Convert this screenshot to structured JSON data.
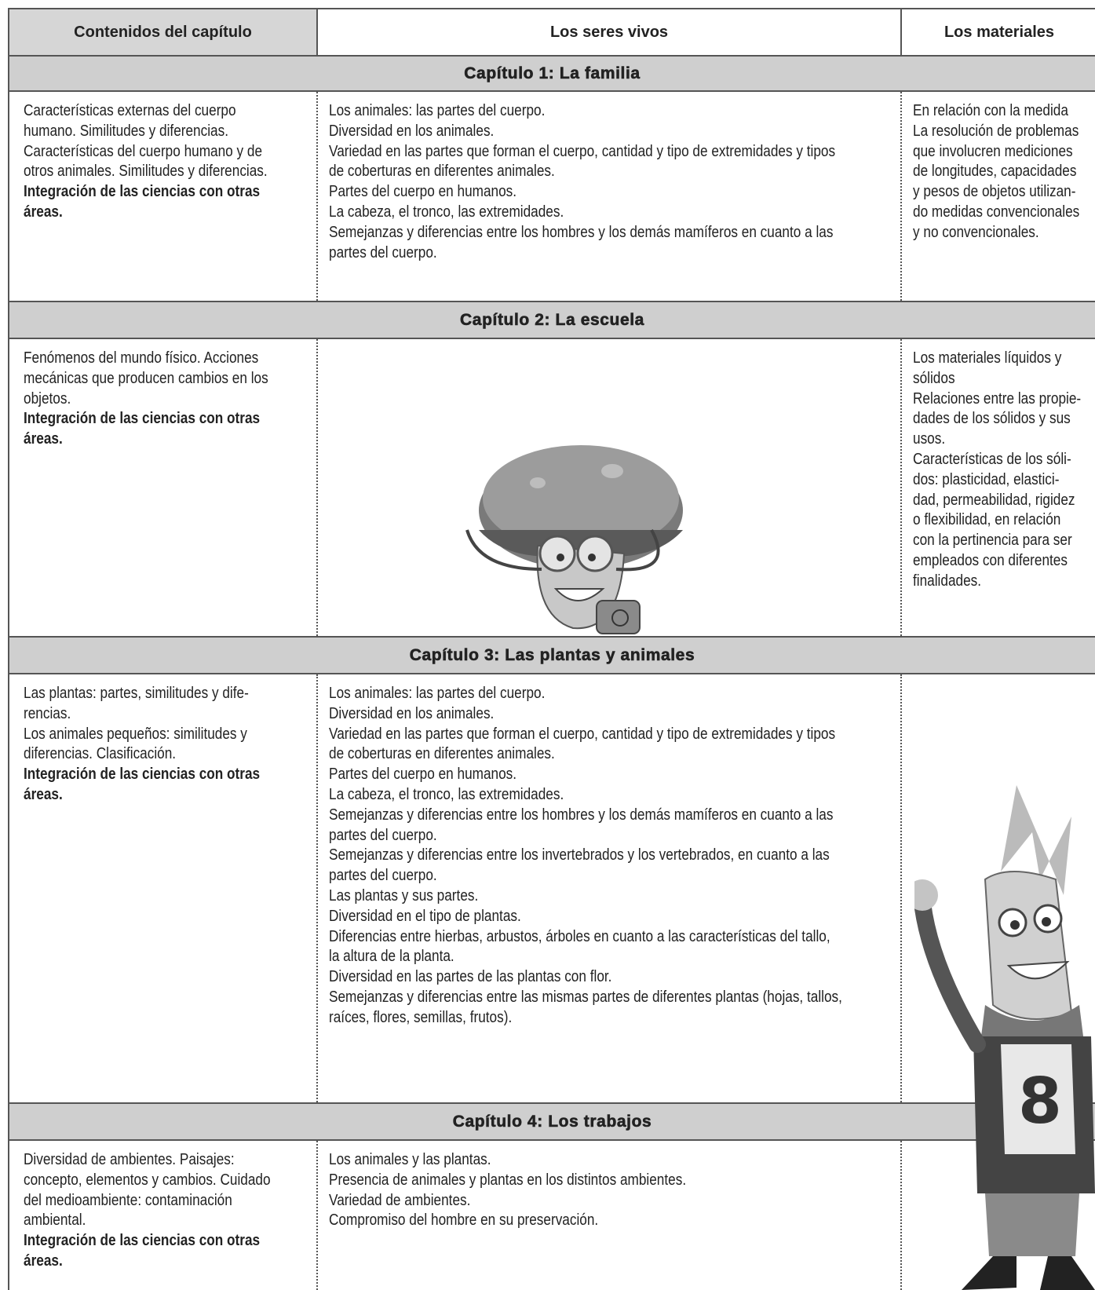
{
  "header": [
    "Contenidos del capítulo",
    "Los seres vivos",
    "Los materiales"
  ],
  "chapters": [
    {
      "title": "Capítulo 1: La familia",
      "contents": {
        "text": [
          "Características externas del cuerpo",
          "humano. Similitudes y diferencias.",
          "Características del cuerpo humano y de",
          "otros animales. Similitudes y diferencias."
        ],
        "bold": [
          "Integración de las ciencias con otras",
          "áreas."
        ]
      },
      "seres_vivos": [
        "Los animales: las partes del cuerpo.",
        "Diversidad en los animales.",
        "Variedad en las partes que forman el cuerpo, cantidad y tipo de extremidades y tipos",
        "de coberturas en diferentes animales.",
        "Partes del cuerpo en humanos.",
        "La cabeza, el tronco, las extremidades.",
        "Semejanzas y diferencias entre los hombres y los demás mamíferos en cuanto a las",
        "partes del cuerpo."
      ],
      "materiales": [
        "En relación con la medida",
        "La resolución de problemas",
        "que involucren mediciones",
        "de longitudes, capacidades",
        "y pesos de objetos utilizan-",
        "do medidas convencionales",
        "y no convencionales."
      ]
    },
    {
      "title": "Capítulo 2: La escuela",
      "contents": {
        "text": [
          "Fenómenos del mundo físico. Acciones",
          "mecánicas que producen cambios en los",
          "objetos."
        ],
        "bold": [
          "Integración de las ciencias con otras",
          "áreas."
        ]
      },
      "materiales": [
        "Los materiales líquidos y",
        "sólidos",
        "Relaciones entre las propie-",
        "dades de los sólidos y sus",
        "usos.",
        "Características de los sóli-",
        "dos: plasticidad, elastici-",
        "dad, permeabilidad, rigidez",
        "o flexibilidad, en relación",
        "con la pertinencia para ser",
        "empleados con diferentes",
        "finalidades."
      ]
    },
    {
      "title": "Capítulo 3: Las plantas y animales",
      "contents": {
        "text": [
          "Las plantas: partes, similitudes y dife-",
          "rencias.",
          "Los animales pequeños: similitudes y",
          "diferencias. Clasificación."
        ],
        "bold": [
          "Integración de las ciencias con otras",
          "áreas."
        ]
      },
      "seres_vivos": [
        "Los animales: las partes del cuerpo.",
        "Diversidad en los animales.",
        "Variedad en las partes que forman el cuerpo, cantidad y tipo de extremidades y tipos",
        "de coberturas en diferentes animales.",
        "Partes del cuerpo en humanos.",
        "La cabeza, el tronco, las extremidades.",
        "Semejanzas y diferencias entre los hombres y los demás mamíferos en cuanto a las",
        "partes del cuerpo.",
        "Semejanzas y diferencias entre los invertebrados y los vertebrados, en cuanto a las",
        "partes del cuerpo.",
        "Las plantas y sus partes.",
        "Diversidad en el tipo de plantas.",
        "Diferencias entre hierbas, arbustos, árboles en cuanto a las características del tallo,",
        "la altura de la planta.",
        "Diversidad en las partes de las plantas con flor.",
        "Semejanzas y diferencias entre las mismas partes de diferentes plantas (hojas, tallos,",
        "raíces, flores, semillas, frutos)."
      ]
    },
    {
      "title": "Capítulo 4: Los trabajos",
      "contents": {
        "text": [
          "Diversidad de ambientes. Paisajes:",
          "concepto, elementos y cambios. Cuidado",
          "del medioambiente: contaminación",
          "ambiental."
        ],
        "bold": [
          "Integración de las ciencias con otras",
          "áreas."
        ]
      },
      "seres_vivos": [
        "Los animales y las plantas.",
        "Presencia de animales y plantas en los distintos ambientes.",
        "Variedad de ambientes.",
        "Compromiso del hombre en su preservación."
      ]
    }
  ]
}
